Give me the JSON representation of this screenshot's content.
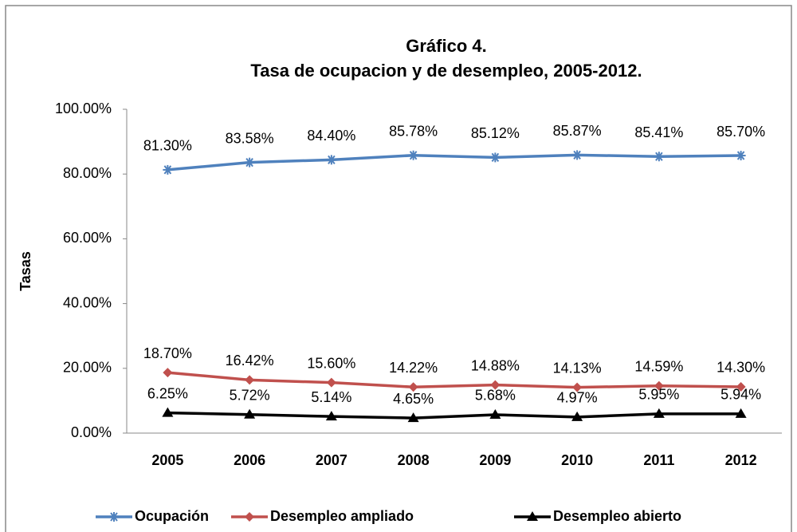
{
  "chart_data": {
    "type": "line",
    "title": "Gráfico 4.",
    "subtitle": "Tasa de ocupacion y de desempleo, 2005-2012.",
    "y_label": "Tasas",
    "categories": [
      "2005",
      "2006",
      "2007",
      "2008",
      "2009",
      "2010",
      "2011",
      "2012"
    ],
    "ylim": [
      0,
      100
    ],
    "yticks": [
      {
        "value": 0,
        "label": "0.00%"
      },
      {
        "value": 20,
        "label": "20.00%"
      },
      {
        "value": 40,
        "label": "40.00%"
      },
      {
        "value": 60,
        "label": "60.00%"
      },
      {
        "value": 80,
        "label": "80.00%"
      },
      {
        "value": 100,
        "label": "100.00%"
      }
    ],
    "grid": false,
    "legend": "bottom",
    "series": [
      {
        "name": "Ocupación",
        "color": "#4f81bd",
        "marker": "star",
        "values": [
          81.3,
          83.58,
          84.4,
          85.78,
          85.12,
          85.87,
          85.41,
          85.7
        ],
        "value_labels": [
          "81.30%",
          "83.58%",
          "84.40%",
          "85.78%",
          "85.12%",
          "85.87%",
          "85.41%",
          "85.70%"
        ]
      },
      {
        "name": "Desempleo ampliado",
        "color": "#c0504d",
        "marker": "diamond",
        "values": [
          18.7,
          16.42,
          15.6,
          14.22,
          14.88,
          14.13,
          14.59,
          14.3
        ],
        "value_labels": [
          "18.70%",
          "16.42%",
          "15.60%",
          "14.22%",
          "14.88%",
          "14.13%",
          "14.59%",
          "14.30%"
        ]
      },
      {
        "name": "Desempleo abierto",
        "color": "#000000",
        "marker": "triangle",
        "values": [
          6.25,
          5.72,
          5.14,
          4.65,
          5.68,
          4.97,
          5.95,
          5.94
        ],
        "value_labels": [
          "6.25%",
          "5.72%",
          "5.14%",
          "4.65%",
          "5.68%",
          "4.97%",
          "5.95%",
          "5.94%"
        ]
      }
    ]
  }
}
